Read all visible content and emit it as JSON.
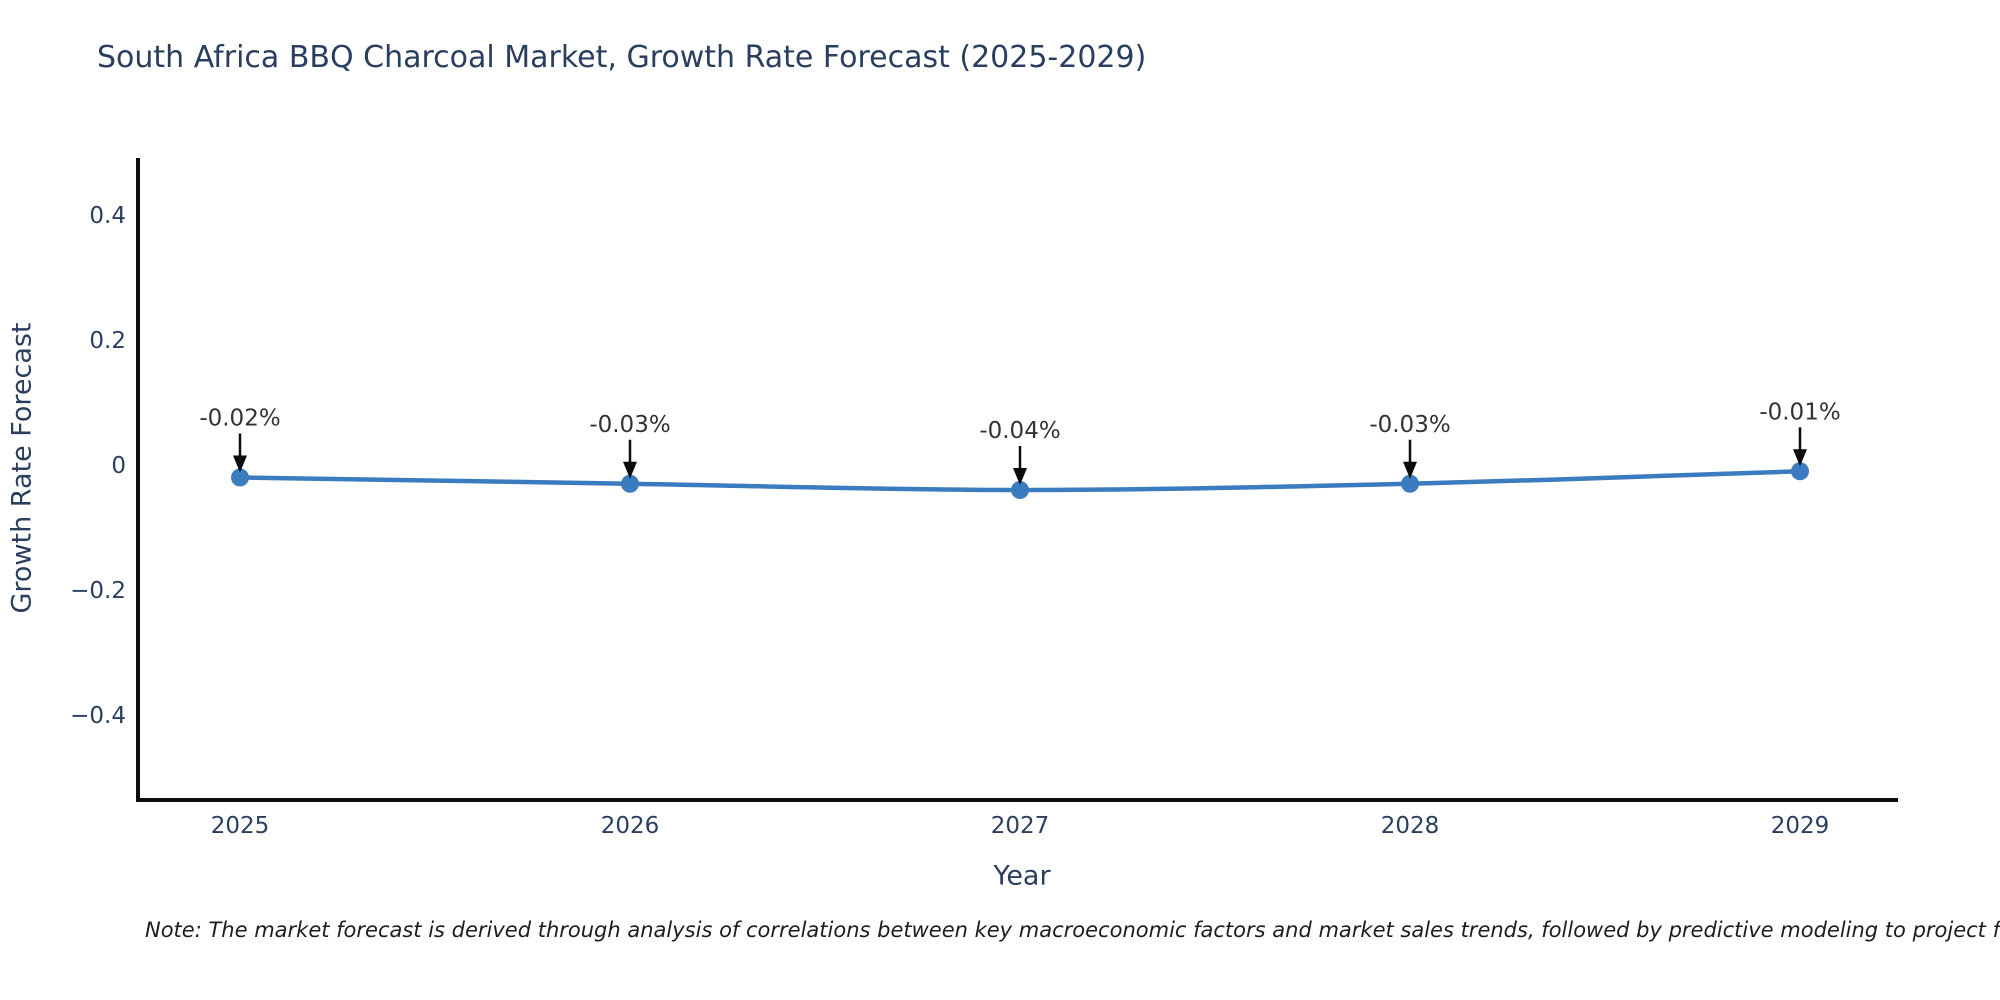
{
  "chart_data": {
    "type": "line",
    "title": "South Africa BBQ Charcoal Market, Growth Rate Forecast (2025-2029)",
    "xlabel": "Year",
    "ylabel": "Growth Rate Forecast",
    "x": [
      2025,
      2026,
      2027,
      2028,
      2029
    ],
    "series": [
      {
        "name": "Growth Rate Forecast",
        "values": [
          -0.02,
          -0.03,
          -0.04,
          -0.03,
          -0.01
        ],
        "point_labels": [
          "-0.02%",
          "-0.03%",
          "-0.04%",
          "-0.03%",
          "-0.01%"
        ]
      }
    ],
    "x_tick_labels": [
      "2025",
      "2026",
      "2027",
      "2028",
      "2029"
    ],
    "y_ticks": {
      "values": [
        0.4,
        0.2,
        0,
        -0.2,
        -0.4
      ],
      "labels": [
        "0.4",
        "0.2",
        "0",
        "−0.2",
        "−0.4"
      ]
    },
    "ylim": [
      -0.54,
      0.49
    ],
    "grid": "off",
    "legend": "none",
    "colors": {
      "line": "#3a7cbf",
      "marker": "#3a7cbf",
      "axis": "#0d0d0d",
      "tick_text": "#2a3f5f",
      "annotation_text": "#333333",
      "arrow": "#0d0d0d"
    },
    "note": "Note: The market forecast is derived through analysis of correlations between key macroeconomic factors and market sales trends, followed by predictive modeling to project future sales"
  }
}
